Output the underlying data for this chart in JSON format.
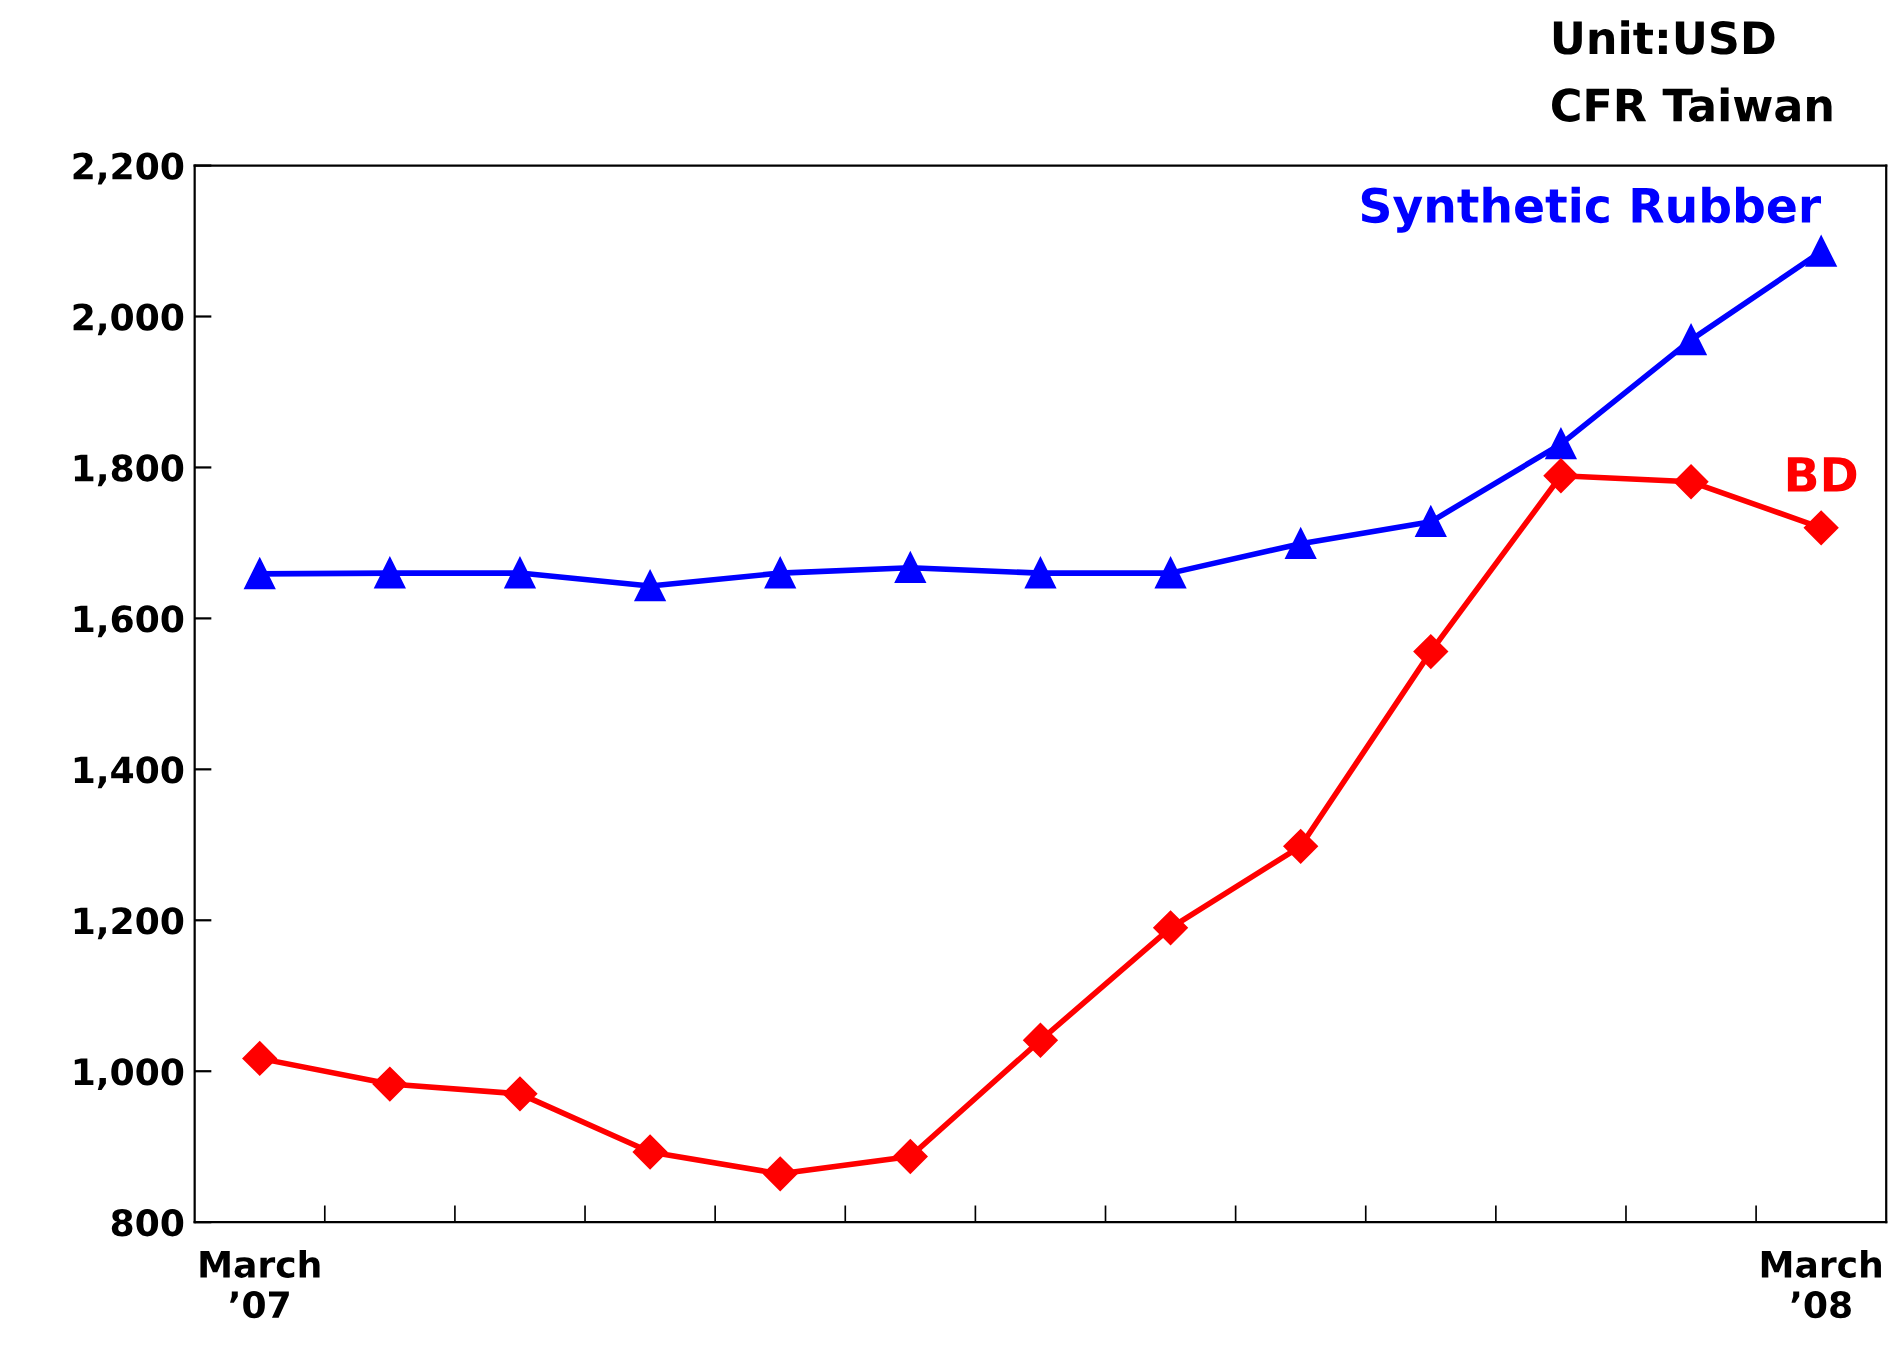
{
  "chart_data": {
    "type": "line",
    "categories": [
      "March\n’07",
      null,
      null,
      null,
      null,
      null,
      null,
      null,
      null,
      null,
      null,
      null,
      "March\n’08"
    ],
    "series": [
      {
        "name": "Synthetic Rubber",
        "color": "#0000ff",
        "marker": "triangle",
        "values": [
          1659,
          1660,
          1660,
          1643,
          1660,
          1667,
          1660,
          1660,
          1699,
          1728,
          1831,
          1969,
          2086
        ]
      },
      {
        "name": "BD",
        "color": "#ff0000",
        "marker": "diamond",
        "values": [
          1017,
          983,
          970,
          893,
          864,
          887,
          1041,
          1190,
          1298,
          1556,
          1789,
          1781,
          1720
        ]
      }
    ],
    "ylim": [
      800,
      2200
    ],
    "yticks": [
      {
        "value": 800,
        "label": "800"
      },
      {
        "value": 1000,
        "label": "1,000"
      },
      {
        "value": 1200,
        "label": "1,200"
      },
      {
        "value": 1400,
        "label": "1,400"
      },
      {
        "value": 1600,
        "label": "1,600"
      },
      {
        "value": 1800,
        "label": "1,800"
      },
      {
        "value": 2000,
        "label": "2,000"
      },
      {
        "value": 2200,
        "label": "2,200"
      }
    ],
    "annotations": [
      "Unit:USD",
      "CFR Taiwan"
    ],
    "legend": false,
    "grid": false,
    "line_style": "solid"
  }
}
